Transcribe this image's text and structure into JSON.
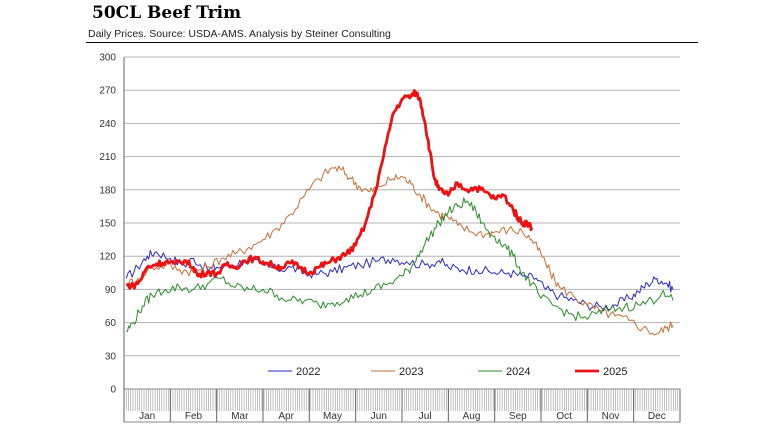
{
  "chart_data": {
    "type": "line",
    "title": "50CL Beef Trim",
    "subtitle": "Daily Prices.  Source: USDA-AMS.  Analysis by Steiner Consulting",
    "xlabel": "",
    "ylabel": "",
    "ylim": [
      0,
      300
    ],
    "yticks": [
      0,
      30,
      60,
      90,
      120,
      150,
      180,
      210,
      240,
      270,
      300
    ],
    "grid": true,
    "legend": "bottom",
    "months": [
      "Jan",
      "Feb",
      "Mar",
      "Apr",
      "May",
      "Jun",
      "Jul",
      "Aug",
      "Sep",
      "Oct",
      "Nov",
      "Dec"
    ],
    "x_unit": "month index (0 = start of Jan, 12 = end of Dec)",
    "series": [
      {
        "name": "2022",
        "color": "#2b2bc8",
        "width": 1,
        "points": [
          [
            0.05,
            100
          ],
          [
            0.3,
            110
          ],
          [
            0.5,
            120
          ],
          [
            0.7,
            124
          ],
          [
            1.0,
            118
          ],
          [
            1.3,
            112
          ],
          [
            1.5,
            118
          ],
          [
            1.8,
            108
          ],
          [
            2.0,
            110
          ],
          [
            2.3,
            112
          ],
          [
            2.6,
            116
          ],
          [
            3.0,
            112
          ],
          [
            3.3,
            108
          ],
          [
            3.6,
            110
          ],
          [
            3.9,
            105
          ],
          [
            4.2,
            104
          ],
          [
            4.5,
            106
          ],
          [
            4.8,
            110
          ],
          [
            5.1,
            112
          ],
          [
            5.5,
            116
          ],
          [
            5.8,
            118
          ],
          [
            6.1,
            115
          ],
          [
            6.5,
            112
          ],
          [
            6.8,
            116
          ],
          [
            7.0,
            110
          ],
          [
            7.3,
            108
          ],
          [
            7.6,
            108
          ],
          [
            8.0,
            105
          ],
          [
            8.3,
            105
          ],
          [
            8.6,
            102
          ],
          [
            8.9,
            100
          ],
          [
            9.1,
            90
          ],
          [
            9.4,
            84
          ],
          [
            9.7,
            80
          ],
          [
            10.0,
            76
          ],
          [
            10.3,
            74
          ],
          [
            10.6,
            76
          ],
          [
            10.9,
            82
          ],
          [
            11.1,
            88
          ],
          [
            11.3,
            95
          ],
          [
            11.5,
            100
          ],
          [
            11.7,
            96
          ],
          [
            11.85,
            90
          ]
        ]
      },
      {
        "name": "2023",
        "color": "#c8703a",
        "width": 1,
        "points": [
          [
            0.05,
            94
          ],
          [
            0.3,
            100
          ],
          [
            0.6,
            110
          ],
          [
            0.9,
            112
          ],
          [
            1.2,
            108
          ],
          [
            1.5,
            106
          ],
          [
            1.8,
            110
          ],
          [
            2.1,
            118
          ],
          [
            2.4,
            122
          ],
          [
            2.7,
            128
          ],
          [
            3.0,
            135
          ],
          [
            3.3,
            145
          ],
          [
            3.6,
            158
          ],
          [
            3.9,
            175
          ],
          [
            4.2,
            190
          ],
          [
            4.5,
            200
          ],
          [
            4.7,
            198
          ],
          [
            4.9,
            190
          ],
          [
            5.1,
            182
          ],
          [
            5.3,
            178
          ],
          [
            5.5,
            183
          ],
          [
            5.8,
            190
          ],
          [
            6.0,
            192
          ],
          [
            6.2,
            185
          ],
          [
            6.4,
            175
          ],
          [
            6.6,
            165
          ],
          [
            6.8,
            158
          ],
          [
            7.0,
            155
          ],
          [
            7.2,
            148
          ],
          [
            7.5,
            142
          ],
          [
            7.8,
            140
          ],
          [
            8.0,
            142
          ],
          [
            8.3,
            144
          ],
          [
            8.6,
            142
          ],
          [
            8.8,
            135
          ],
          [
            9.0,
            122
          ],
          [
            9.2,
            105
          ],
          [
            9.4,
            92
          ],
          [
            9.7,
            84
          ],
          [
            10.0,
            76
          ],
          [
            10.3,
            70
          ],
          [
            10.6,
            66
          ],
          [
            10.9,
            62
          ],
          [
            11.2,
            55
          ],
          [
            11.5,
            50
          ],
          [
            11.7,
            55
          ],
          [
            11.85,
            58
          ]
        ]
      },
      {
        "name": "2024",
        "color": "#2a8f2a",
        "width": 1,
        "points": [
          [
            0.05,
            52
          ],
          [
            0.2,
            60
          ],
          [
            0.4,
            75
          ],
          [
            0.6,
            85
          ],
          [
            0.9,
            90
          ],
          [
            1.2,
            92
          ],
          [
            1.5,
            90
          ],
          [
            1.8,
            95
          ],
          [
            2.1,
            100
          ],
          [
            2.4,
            92
          ],
          [
            2.7,
            90
          ],
          [
            3.0,
            90
          ],
          [
            3.3,
            85
          ],
          [
            3.6,
            80
          ],
          [
            3.9,
            80
          ],
          [
            4.2,
            76
          ],
          [
            4.5,
            78
          ],
          [
            4.8,
            82
          ],
          [
            5.1,
            85
          ],
          [
            5.4,
            90
          ],
          [
            5.7,
            95
          ],
          [
            6.0,
            102
          ],
          [
            6.2,
            110
          ],
          [
            6.4,
            125
          ],
          [
            6.6,
            138
          ],
          [
            6.8,
            150
          ],
          [
            7.0,
            160
          ],
          [
            7.2,
            165
          ],
          [
            7.4,
            170
          ],
          [
            7.6,
            160
          ],
          [
            7.8,
            145
          ],
          [
            8.0,
            138
          ],
          [
            8.2,
            130
          ],
          [
            8.4,
            120
          ],
          [
            8.6,
            105
          ],
          [
            8.8,
            95
          ],
          [
            9.0,
            82
          ],
          [
            9.3,
            75
          ],
          [
            9.6,
            68
          ],
          [
            9.9,
            64
          ],
          [
            10.2,
            68
          ],
          [
            10.5,
            72
          ],
          [
            10.8,
            74
          ],
          [
            11.1,
            76
          ],
          [
            11.4,
            80
          ],
          [
            11.6,
            86
          ],
          [
            11.85,
            80
          ]
        ]
      },
      {
        "name": "2025",
        "color": "#ee1111",
        "width": 2.8,
        "points": [
          [
            0.05,
            94
          ],
          [
            0.2,
            93
          ],
          [
            0.35,
            98
          ],
          [
            0.5,
            110
          ],
          [
            0.7,
            113
          ],
          [
            0.9,
            115
          ],
          [
            1.1,
            113
          ],
          [
            1.3,
            116
          ],
          [
            1.5,
            110
          ],
          [
            1.6,
            102
          ],
          [
            1.8,
            106
          ],
          [
            2.0,
            104
          ],
          [
            2.2,
            112
          ],
          [
            2.4,
            110
          ],
          [
            2.6,
            116
          ],
          [
            2.8,
            118
          ],
          [
            3.0,
            115
          ],
          [
            3.2,
            112
          ],
          [
            3.4,
            110
          ],
          [
            3.6,
            114
          ],
          [
            3.8,
            110
          ],
          [
            4.0,
            105
          ],
          [
            4.2,
            110
          ],
          [
            4.4,
            114
          ],
          [
            4.6,
            118
          ],
          [
            4.8,
            122
          ],
          [
            5.0,
            130
          ],
          [
            5.2,
            148
          ],
          [
            5.4,
            175
          ],
          [
            5.6,
            210
          ],
          [
            5.8,
            248
          ],
          [
            6.0,
            262
          ],
          [
            6.2,
            265
          ],
          [
            6.3,
            268
          ],
          [
            6.4,
            260
          ],
          [
            6.5,
            240
          ],
          [
            6.6,
            215
          ],
          [
            6.7,
            190
          ],
          [
            6.8,
            180
          ],
          [
            6.9,
            178
          ],
          [
            7.0,
            175
          ],
          [
            7.2,
            186
          ],
          [
            7.4,
            180
          ],
          [
            7.6,
            182
          ],
          [
            7.8,
            178
          ],
          [
            8.0,
            172
          ],
          [
            8.2,
            175
          ],
          [
            8.4,
            162
          ],
          [
            8.5,
            155
          ],
          [
            8.6,
            150
          ],
          [
            8.7,
            150
          ],
          [
            8.8,
            146
          ]
        ]
      }
    ]
  }
}
